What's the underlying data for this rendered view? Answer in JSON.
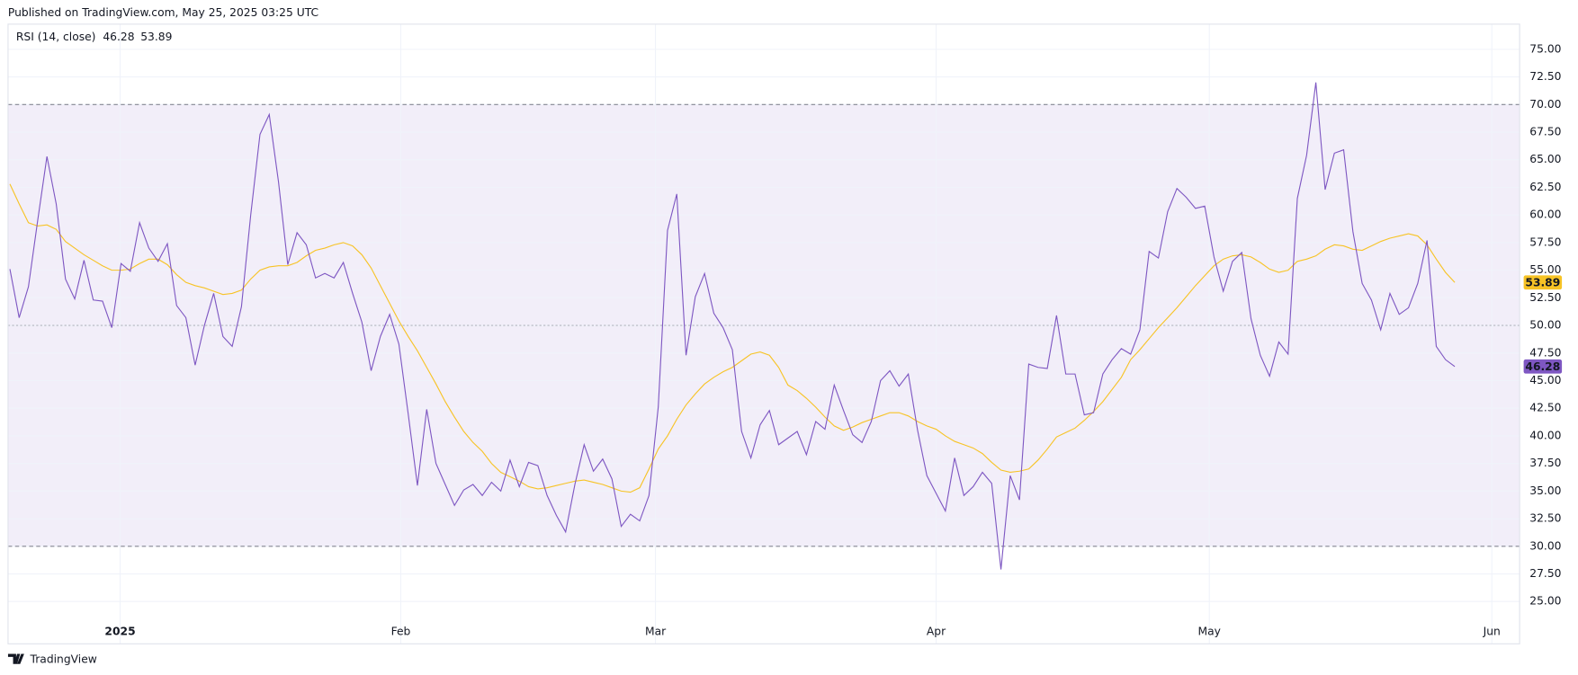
{
  "header": {
    "text": "Published on TradingView.com, May 25, 2025 03:25 UTC"
  },
  "footer": {
    "brand": "TradingView"
  },
  "chart_data": {
    "type": "line",
    "legend_label": "RSI (14, close)",
    "xlim": [
      -0.2,
      163.0
    ],
    "xticks": [
      {
        "value": 11.9,
        "label": "2025"
      },
      {
        "value": 42.2,
        "label": "Feb"
      },
      {
        "value": 69.7,
        "label": "Mar"
      },
      {
        "value": 100.0,
        "label": "Apr"
      },
      {
        "value": 129.5,
        "label": "May"
      },
      {
        "value": 160.0,
        "label": "Jun"
      }
    ],
    "ylim": [
      21.17,
      77.28
    ],
    "yticks": [
      {
        "value": 25,
        "label": "25.00"
      },
      {
        "value": 27.5,
        "label": "27.50"
      },
      {
        "value": 30,
        "label": "30.00"
      },
      {
        "value": 32.5,
        "label": "32.50"
      },
      {
        "value": 35,
        "label": "35.00"
      },
      {
        "value": 37.5,
        "label": "37.50"
      },
      {
        "value": 40,
        "label": "40.00"
      },
      {
        "value": 42.5,
        "label": "42.50"
      },
      {
        "value": 45,
        "label": "45.00"
      },
      {
        "value": 47.5,
        "label": "47.50"
      },
      {
        "value": 50,
        "label": "50.00"
      },
      {
        "value": 52.5,
        "label": "52.50"
      },
      {
        "value": 55,
        "label": "55.00"
      },
      {
        "value": 57.5,
        "label": "57.50"
      },
      {
        "value": 60,
        "label": "60.00"
      },
      {
        "value": 62.5,
        "label": "62.50"
      },
      {
        "value": 65,
        "label": "65.00"
      },
      {
        "value": 67.5,
        "label": "67.50"
      },
      {
        "value": 70,
        "label": "70.00"
      },
      {
        "value": 72.5,
        "label": "72.50"
      },
      {
        "value": 75,
        "label": "75.00"
      }
    ],
    "grid": true,
    "bands": {
      "upper": 70,
      "middle": 50,
      "lower": 30,
      "color": "#7e57c2"
    },
    "series": [
      {
        "color": "#7e57c2",
        "values": [
          55.1,
          50.7,
          53.5,
          59.5,
          65.3,
          61.0,
          54.2,
          52.4,
          55.9,
          52.3,
          52.2,
          49.8,
          55.6,
          54.9,
          59.3,
          57.0,
          55.8,
          57.4,
          51.8,
          50.7,
          46.4,
          50.0,
          52.9,
          49.0,
          48.1,
          51.7,
          60.0,
          67.3,
          69.1,
          63.0,
          55.5,
          58.4,
          57.3,
          54.3,
          54.7,
          54.3,
          55.7,
          52.9,
          50.3,
          45.9,
          49.0,
          51.0,
          48.3,
          42.0,
          35.5,
          42.4,
          37.5,
          35.6,
          33.7,
          35.1,
          35.6,
          34.6,
          35.8,
          35.0,
          37.8,
          35.4,
          37.6,
          37.3,
          34.6,
          32.8,
          31.3,
          35.6,
          39.2,
          36.8,
          37.9,
          36.1,
          31.8,
          32.9,
          32.3,
          34.6,
          42.6,
          58.6,
          61.9,
          47.3,
          52.6,
          54.7,
          51.1,
          49.8,
          47.8,
          40.4,
          38.0,
          41.0,
          42.3,
          39.2,
          39.8,
          40.4,
          38.3,
          41.3,
          40.6,
          44.6,
          42.3,
          40.1,
          39.4,
          41.3,
          45.0,
          45.9,
          44.5,
          45.6,
          40.5,
          36.4,
          34.8,
          33.2,
          38.0,
          34.6,
          35.4,
          36.7,
          35.7,
          27.9,
          36.4,
          34.2,
          46.5,
          46.2,
          46.1,
          50.9,
          45.6,
          45.6,
          41.9,
          42.1,
          45.6,
          46.9,
          47.9,
          47.4,
          49.6,
          56.7,
          56.1,
          60.3,
          62.4,
          61.6,
          60.6,
          60.8,
          56.2,
          53.1,
          55.8,
          56.6,
          50.6,
          47.3,
          45.4,
          48.5,
          47.4,
          61.5,
          65.4,
          72.0,
          62.3,
          65.6,
          65.9,
          58.5,
          53.8,
          52.3,
          49.6,
          52.9,
          51.0,
          51.6,
          53.8,
          57.7,
          48.1,
          46.9,
          46.28
        ]
      },
      {
        "color": "#f7c325",
        "values": [
          62.8,
          61.0,
          59.3,
          59.0,
          59.1,
          58.7,
          57.6,
          57.0,
          56.4,
          55.9,
          55.4,
          55.0,
          55.0,
          55.1,
          55.6,
          56.0,
          56.0,
          55.5,
          54.6,
          53.9,
          53.6,
          53.4,
          53.1,
          52.8,
          52.9,
          53.2,
          54.2,
          55.0,
          55.3,
          55.4,
          55.4,
          55.7,
          56.3,
          56.8,
          57.0,
          57.3,
          57.5,
          57.2,
          56.4,
          55.2,
          53.6,
          52.0,
          50.4,
          49.0,
          47.7,
          46.2,
          44.7,
          43.1,
          41.7,
          40.4,
          39.4,
          38.6,
          37.5,
          36.7,
          36.3,
          35.9,
          35.4,
          35.2,
          35.3,
          35.5,
          35.7,
          35.9,
          36.0,
          35.8,
          35.6,
          35.3,
          35.0,
          34.9,
          35.3,
          37.0,
          38.8,
          40.0,
          41.5,
          42.8,
          43.8,
          44.7,
          45.3,
          45.8,
          46.2,
          46.8,
          47.4,
          47.6,
          47.3,
          46.2,
          44.6,
          44.1,
          43.4,
          42.6,
          41.7,
          40.9,
          40.5,
          40.8,
          41.2,
          41.5,
          41.8,
          42.1,
          42.1,
          41.8,
          41.3,
          40.9,
          40.6,
          40.0,
          39.5,
          39.2,
          38.9,
          38.4,
          37.6,
          36.9,
          36.7,
          36.8,
          37.0,
          37.8,
          38.8,
          39.9,
          40.3,
          40.7,
          41.4,
          42.2,
          43.1,
          44.2,
          45.3,
          46.9,
          47.8,
          48.8,
          49.8,
          50.7,
          51.6,
          52.6,
          53.6,
          54.5,
          55.4,
          56.0,
          56.3,
          56.4,
          56.2,
          55.7,
          55.1,
          54.8,
          55.0,
          55.8,
          56.0,
          56.3,
          56.9,
          57.3,
          57.2,
          56.9,
          56.8,
          57.2,
          57.6,
          57.9,
          58.1,
          58.3,
          58.1,
          57.3,
          56.0,
          54.8,
          53.89
        ]
      }
    ]
  }
}
